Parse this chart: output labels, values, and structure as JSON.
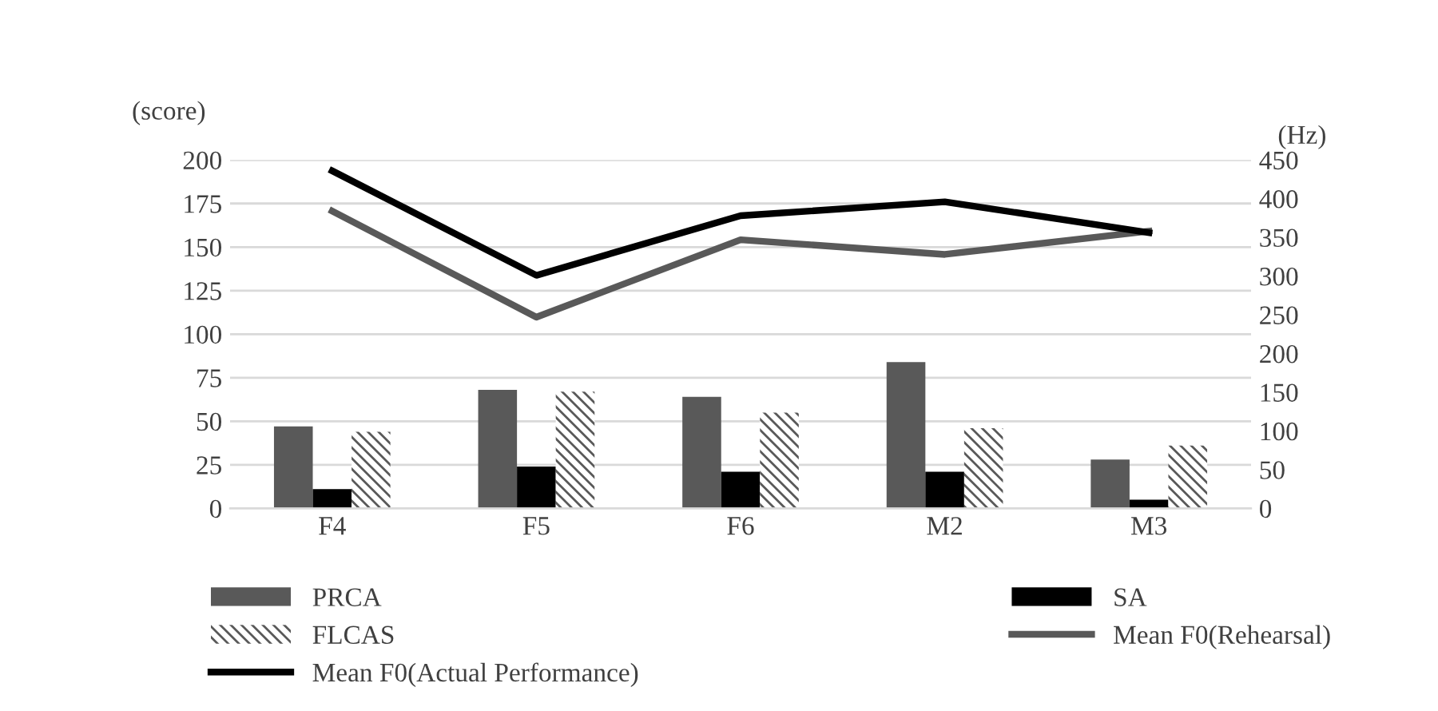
{
  "chart_data": {
    "type": "bar",
    "ylabel": "(score)",
    "y2label": "(Hz)",
    "categories": [
      "F4",
      "F5",
      "F6",
      "M2",
      "M3"
    ],
    "series": [
      {
        "name": "PRCA",
        "color": "#595959",
        "values": [
          47,
          68,
          64,
          84,
          28
        ]
      },
      {
        "name": "SA",
        "color": "#000000",
        "values": [
          11,
          24,
          21,
          21,
          5
        ]
      },
      {
        "name": "FLCAS",
        "color": "#595959",
        "values": [
          44,
          67,
          55,
          46,
          36
        ]
      },
      {
        "name": "Mean F0(Rehearsal)",
        "type": "line",
        "axis": "y2",
        "color": "#595959",
        "values": [
          384,
          247,
          347,
          328,
          358
        ]
      },
      {
        "name": "Mean F0(Actual Performance)",
        "type": "line",
        "axis": "y2",
        "color": "#000000",
        "values": [
          436,
          301,
          378,
          396,
          356
        ]
      }
    ],
    "ylim": [
      0,
      200
    ],
    "yticks": [
      0,
      25,
      50,
      75,
      100,
      125,
      150,
      175,
      200
    ],
    "y2lim": [
      0,
      450
    ],
    "y2ticks": [
      0,
      50,
      100,
      150,
      200,
      250,
      300,
      350,
      400,
      450
    ],
    "grid": "y",
    "legend": "bottom",
    "marker": "none",
    "line_style": "solid"
  }
}
